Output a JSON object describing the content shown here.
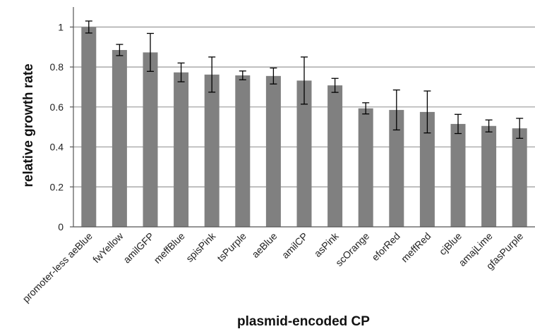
{
  "chart_data": {
    "type": "bar",
    "title": "",
    "xlabel": "plasmid-encoded CP",
    "ylabel": "relative growth rate",
    "ylim": [
      0,
      1.1
    ],
    "yticks": [
      "0",
      "0.2",
      "0.4",
      "0.6",
      "0.8",
      "1"
    ],
    "grid": true,
    "colors": {
      "bar": "#808080",
      "grid": "#9a9a9a",
      "axis": "#555555",
      "error": "#000000"
    },
    "categories": [
      "promoter-less aeBlue",
      "fwYellow",
      "amilGFP",
      "meffBlue",
      "spisPink",
      "tsPurple",
      "aeBlue",
      "amilCP",
      "asPink",
      "scOrange",
      "eforRed",
      "meffRed",
      "cjBlue",
      "amajLime",
      "gfasPurple"
    ],
    "values": [
      1.0,
      0.885,
      0.873,
      0.773,
      0.762,
      0.758,
      0.755,
      0.732,
      0.708,
      0.593,
      0.585,
      0.575,
      0.515,
      0.505,
      0.493
    ],
    "errors": [
      0.03,
      0.028,
      0.095,
      0.047,
      0.088,
      0.022,
      0.04,
      0.118,
      0.035,
      0.028,
      0.1,
      0.105,
      0.048,
      0.03,
      0.05
    ]
  }
}
